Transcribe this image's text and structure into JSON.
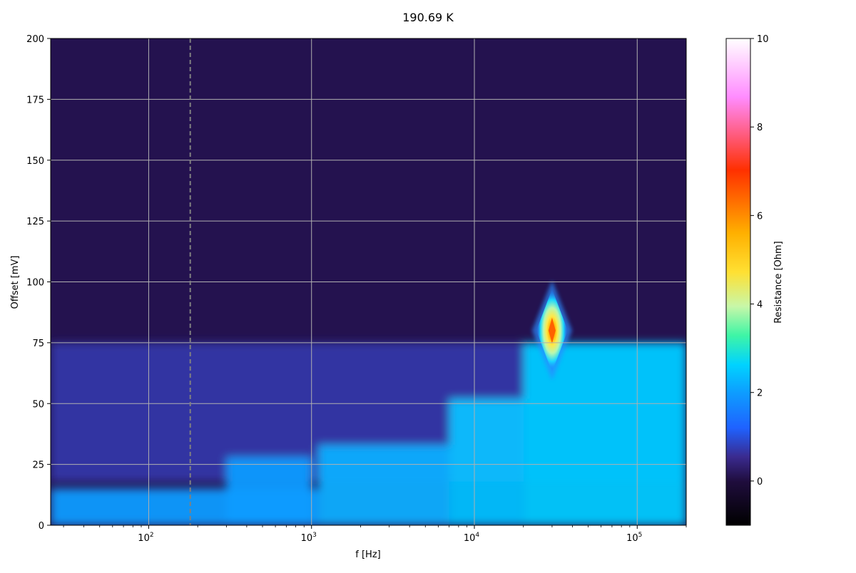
{
  "chart_data": {
    "type": "heatmap",
    "title": "190.69 K",
    "xlabel": "f [Hz]",
    "ylabel": "Offset [mV]",
    "xscale": "log",
    "xlim": [
      25,
      200000
    ],
    "ylim": [
      0,
      200
    ],
    "grid": true,
    "x_ticks": [
      {
        "value": 100,
        "base": "10",
        "exp": "2"
      },
      {
        "value": 1000,
        "base": "10",
        "exp": "3"
      },
      {
        "value": 10000,
        "base": "10",
        "exp": "4"
      },
      {
        "value": 100000,
        "base": "10",
        "exp": "5"
      }
    ],
    "y_ticks": [
      0,
      25,
      50,
      75,
      100,
      125,
      150,
      175,
      200
    ],
    "reference_line": {
      "x": 180,
      "style": "dashed",
      "color": "#808080"
    },
    "colorbar": {
      "label": "Resistance [Ohm]",
      "range": [
        -1,
        10
      ],
      "ticks": [
        0,
        2,
        4,
        6,
        8,
        10
      ],
      "colormap": "gist_ncar-like (black-purple-blue-cyan-green-yellow-orange-red-pink-white)"
    },
    "regions": [
      {
        "description": "background",
        "x_range": [
          25,
          200000
        ],
        "y_range": [
          0,
          200
        ],
        "value": 0.2
      },
      {
        "description": "low band",
        "x_range": [
          25,
          200000
        ],
        "y_range": [
          18,
          75
        ],
        "value": 0.8
      },
      {
        "description": "base stripe",
        "x_range": [
          25,
          1100
        ],
        "y_range": [
          0,
          15
        ],
        "value": 2.0
      },
      {
        "description": "mid bump",
        "x_range": [
          300,
          1000
        ],
        "y_range": [
          0,
          28
        ],
        "value": 2.0
      },
      {
        "description": "plateau",
        "x_range": [
          1100,
          7000
        ],
        "y_range": [
          0,
          33
        ],
        "value": 2.2
      },
      {
        "description": "rise",
        "x_range": [
          7000,
          20000
        ],
        "y_range": [
          0,
          52
        ],
        "value": 2.4
      },
      {
        "description": "high plateau",
        "x_range": [
          20000,
          200000
        ],
        "y_range": [
          0,
          75
        ],
        "value": 2.5
      }
    ],
    "hotspot": {
      "x": 30000,
      "y": 80,
      "peak_value": 6.5
    }
  }
}
